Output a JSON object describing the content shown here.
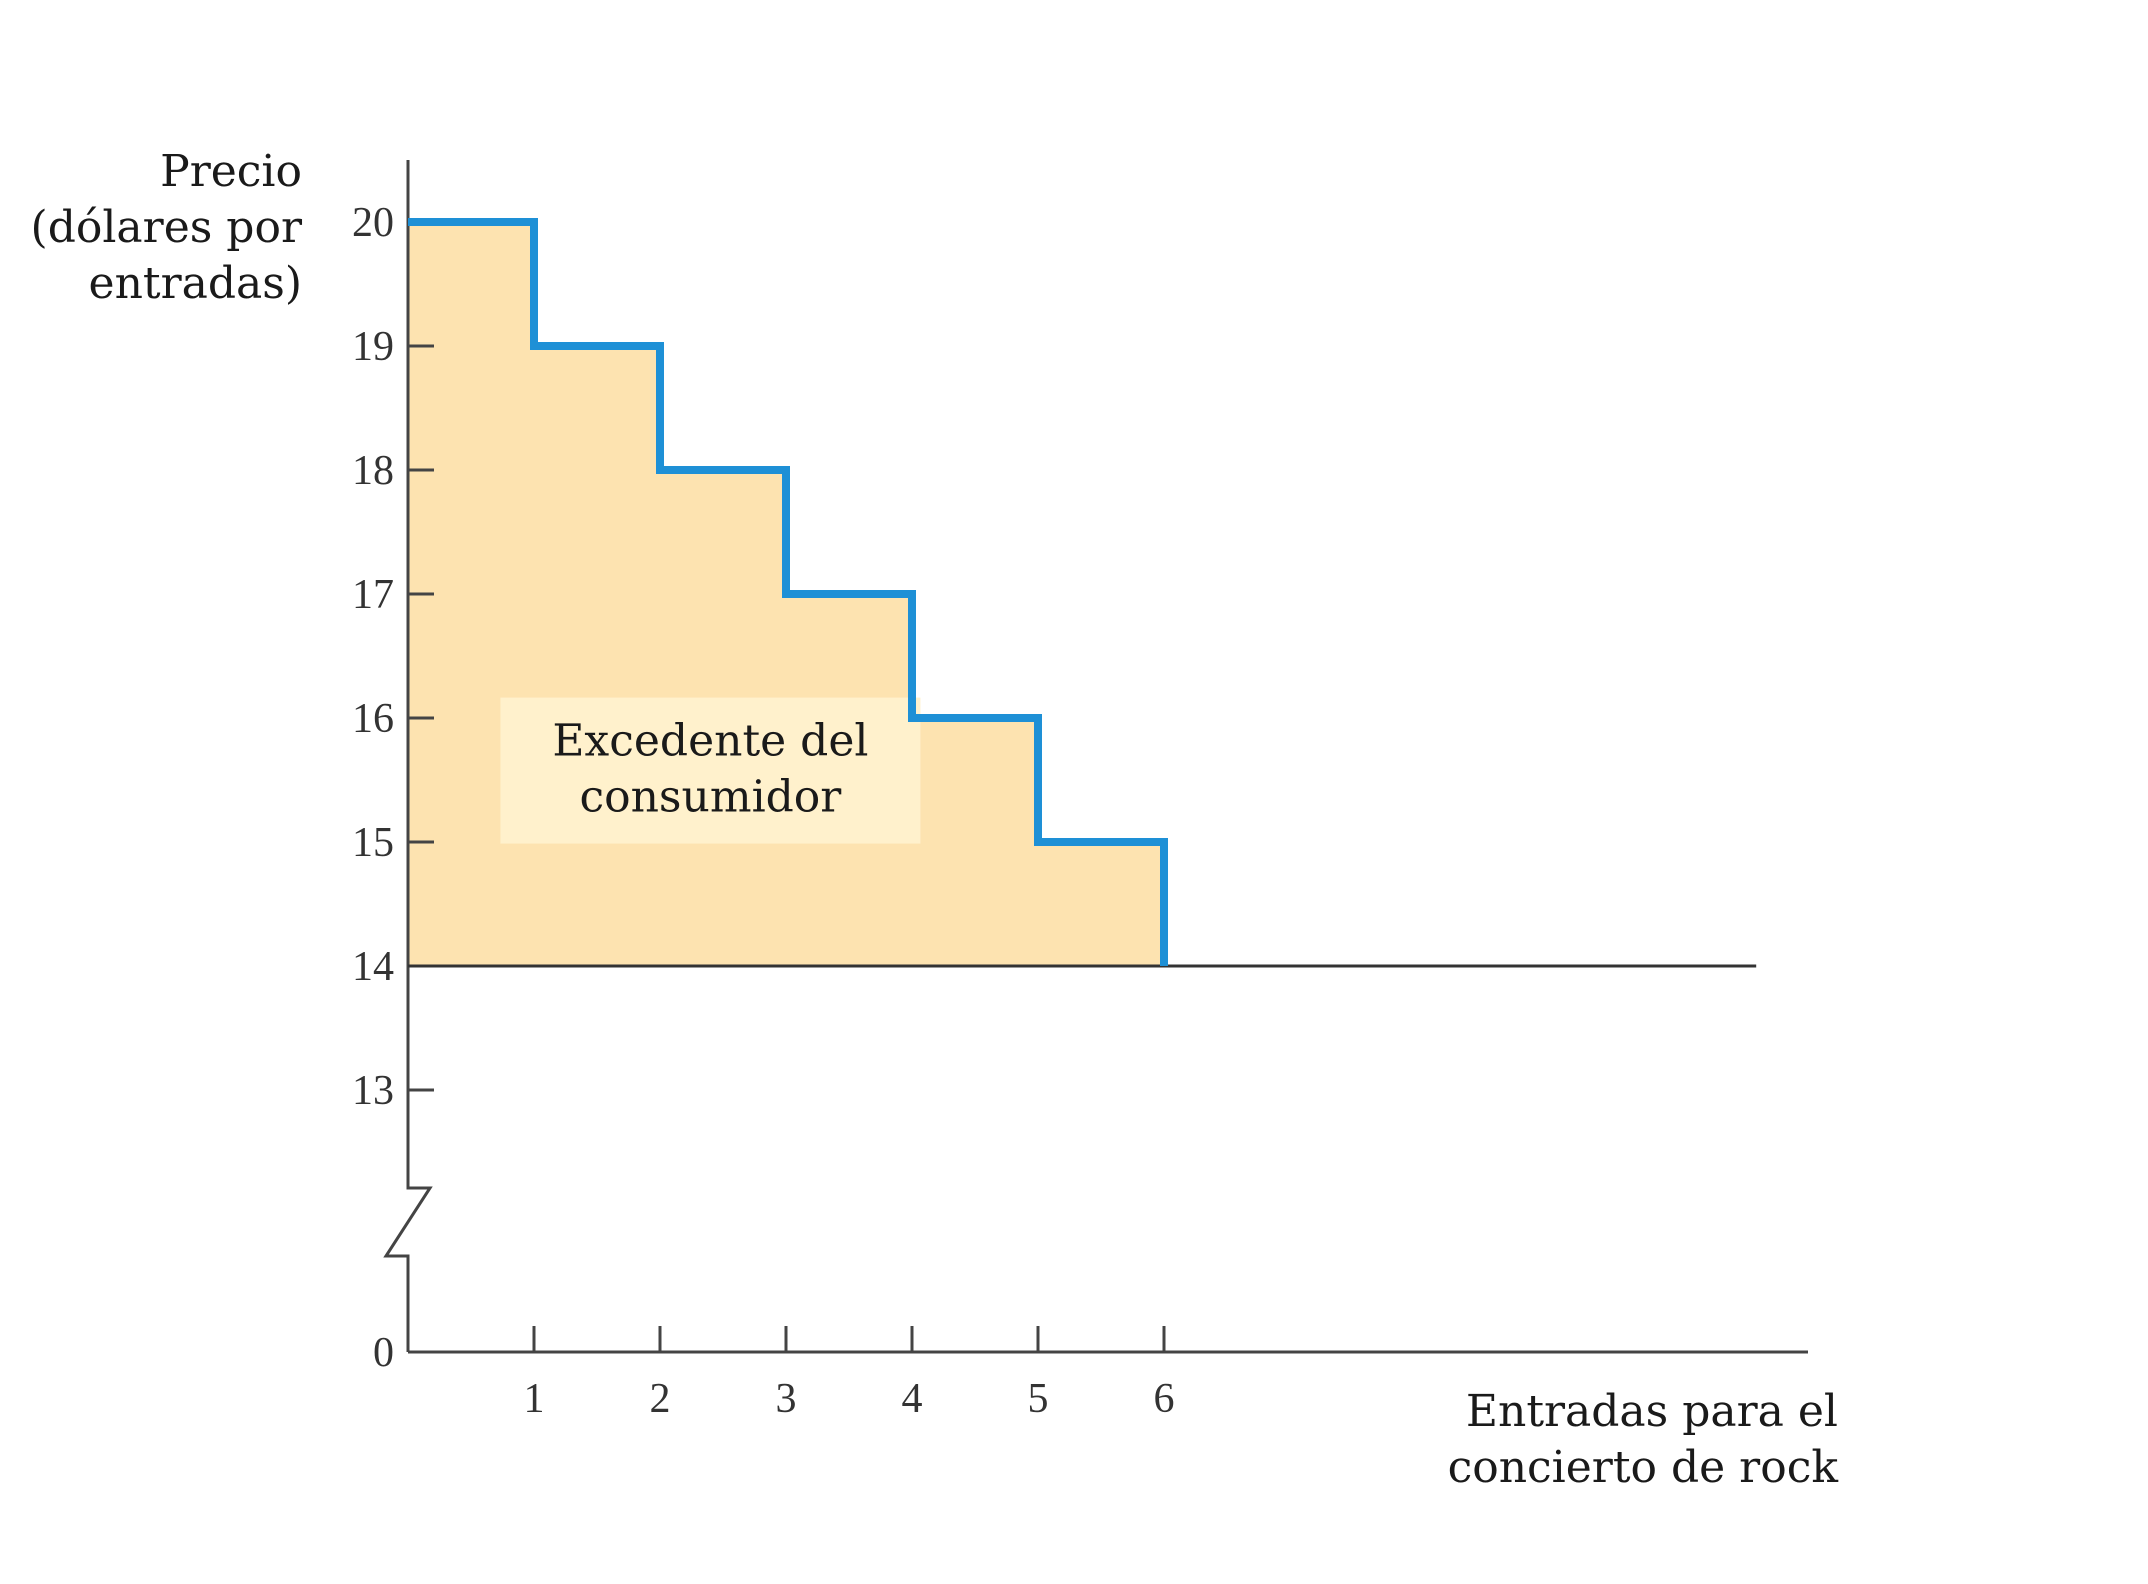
{
  "chart_data": {
    "type": "line",
    "step": true,
    "ylabel_lines": [
      "Precio",
      "(dólares por",
      "entradas)"
    ],
    "xlabel_lines": [
      "Entradas para el",
      "concierto de rock"
    ],
    "y_ticks": [
      20,
      19,
      18,
      17,
      16,
      15,
      14,
      13
    ],
    "y_origin_label": "0",
    "x_ticks": [
      1,
      2,
      3,
      4,
      5,
      6
    ],
    "axis_break": true,
    "ylim": [
      13,
      20
    ],
    "xlim": [
      0,
      10
    ],
    "series": [
      {
        "kind": "step-demand",
        "x": [
          0,
          1,
          2,
          3,
          4,
          5,
          6
        ],
        "y": [
          20,
          19,
          18,
          17,
          16,
          15,
          14
        ]
      },
      {
        "kind": "price-line",
        "x": [
          0,
          10.7
        ],
        "y": [
          14,
          14
        ]
      }
    ],
    "shaded_area": {
      "region": "between demand steps and price 14"
    },
    "annotation": {
      "lines": [
        "Excedente del",
        "consumidor"
      ],
      "x": 2.4,
      "y": 15.6
    },
    "colors": {
      "demand": "#1e90d6",
      "shade": "#fde3b0",
      "annotation_box": "#fff1cc",
      "axis": "#444444",
      "price_line": "#333333"
    }
  }
}
